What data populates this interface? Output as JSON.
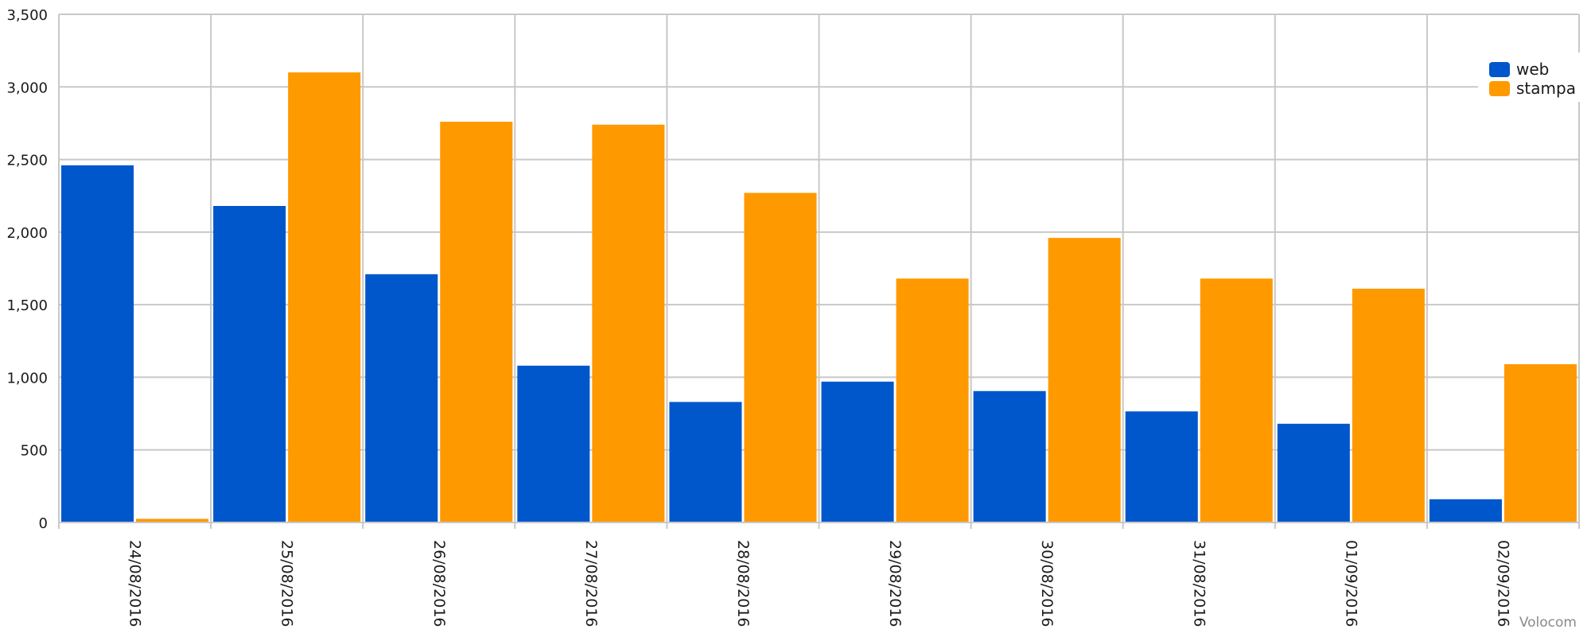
{
  "chart_data": {
    "type": "bar",
    "title": "",
    "xlabel": "",
    "ylabel": "",
    "ylim": [
      0,
      3500
    ],
    "yticks": [
      0,
      500,
      1000,
      1500,
      2000,
      2500,
      3000,
      3500
    ],
    "ytick_labels": [
      "0",
      "500",
      "1,000",
      "1,500",
      "2,000",
      "2,500",
      "3,000",
      "3,500"
    ],
    "grid": true,
    "legend_position": "top-right",
    "categories": [
      "24/08/2016",
      "25/08/2016",
      "26/08/2016",
      "27/08/2016",
      "28/08/2016",
      "29/08/2016",
      "30/08/2016",
      "31/08/2016",
      "01/09/2016",
      "02/09/2016"
    ],
    "series": [
      {
        "name": "web",
        "color": "#0057cc",
        "values": [
          2460,
          2180,
          1710,
          1080,
          830,
          970,
          905,
          765,
          680,
          160
        ]
      },
      {
        "name": "stampa",
        "color": "#ff9900",
        "values": [
          25,
          3100,
          2760,
          2740,
          2270,
          1680,
          1960,
          1680,
          1610,
          1090
        ]
      }
    ]
  },
  "watermark": "Volocom"
}
